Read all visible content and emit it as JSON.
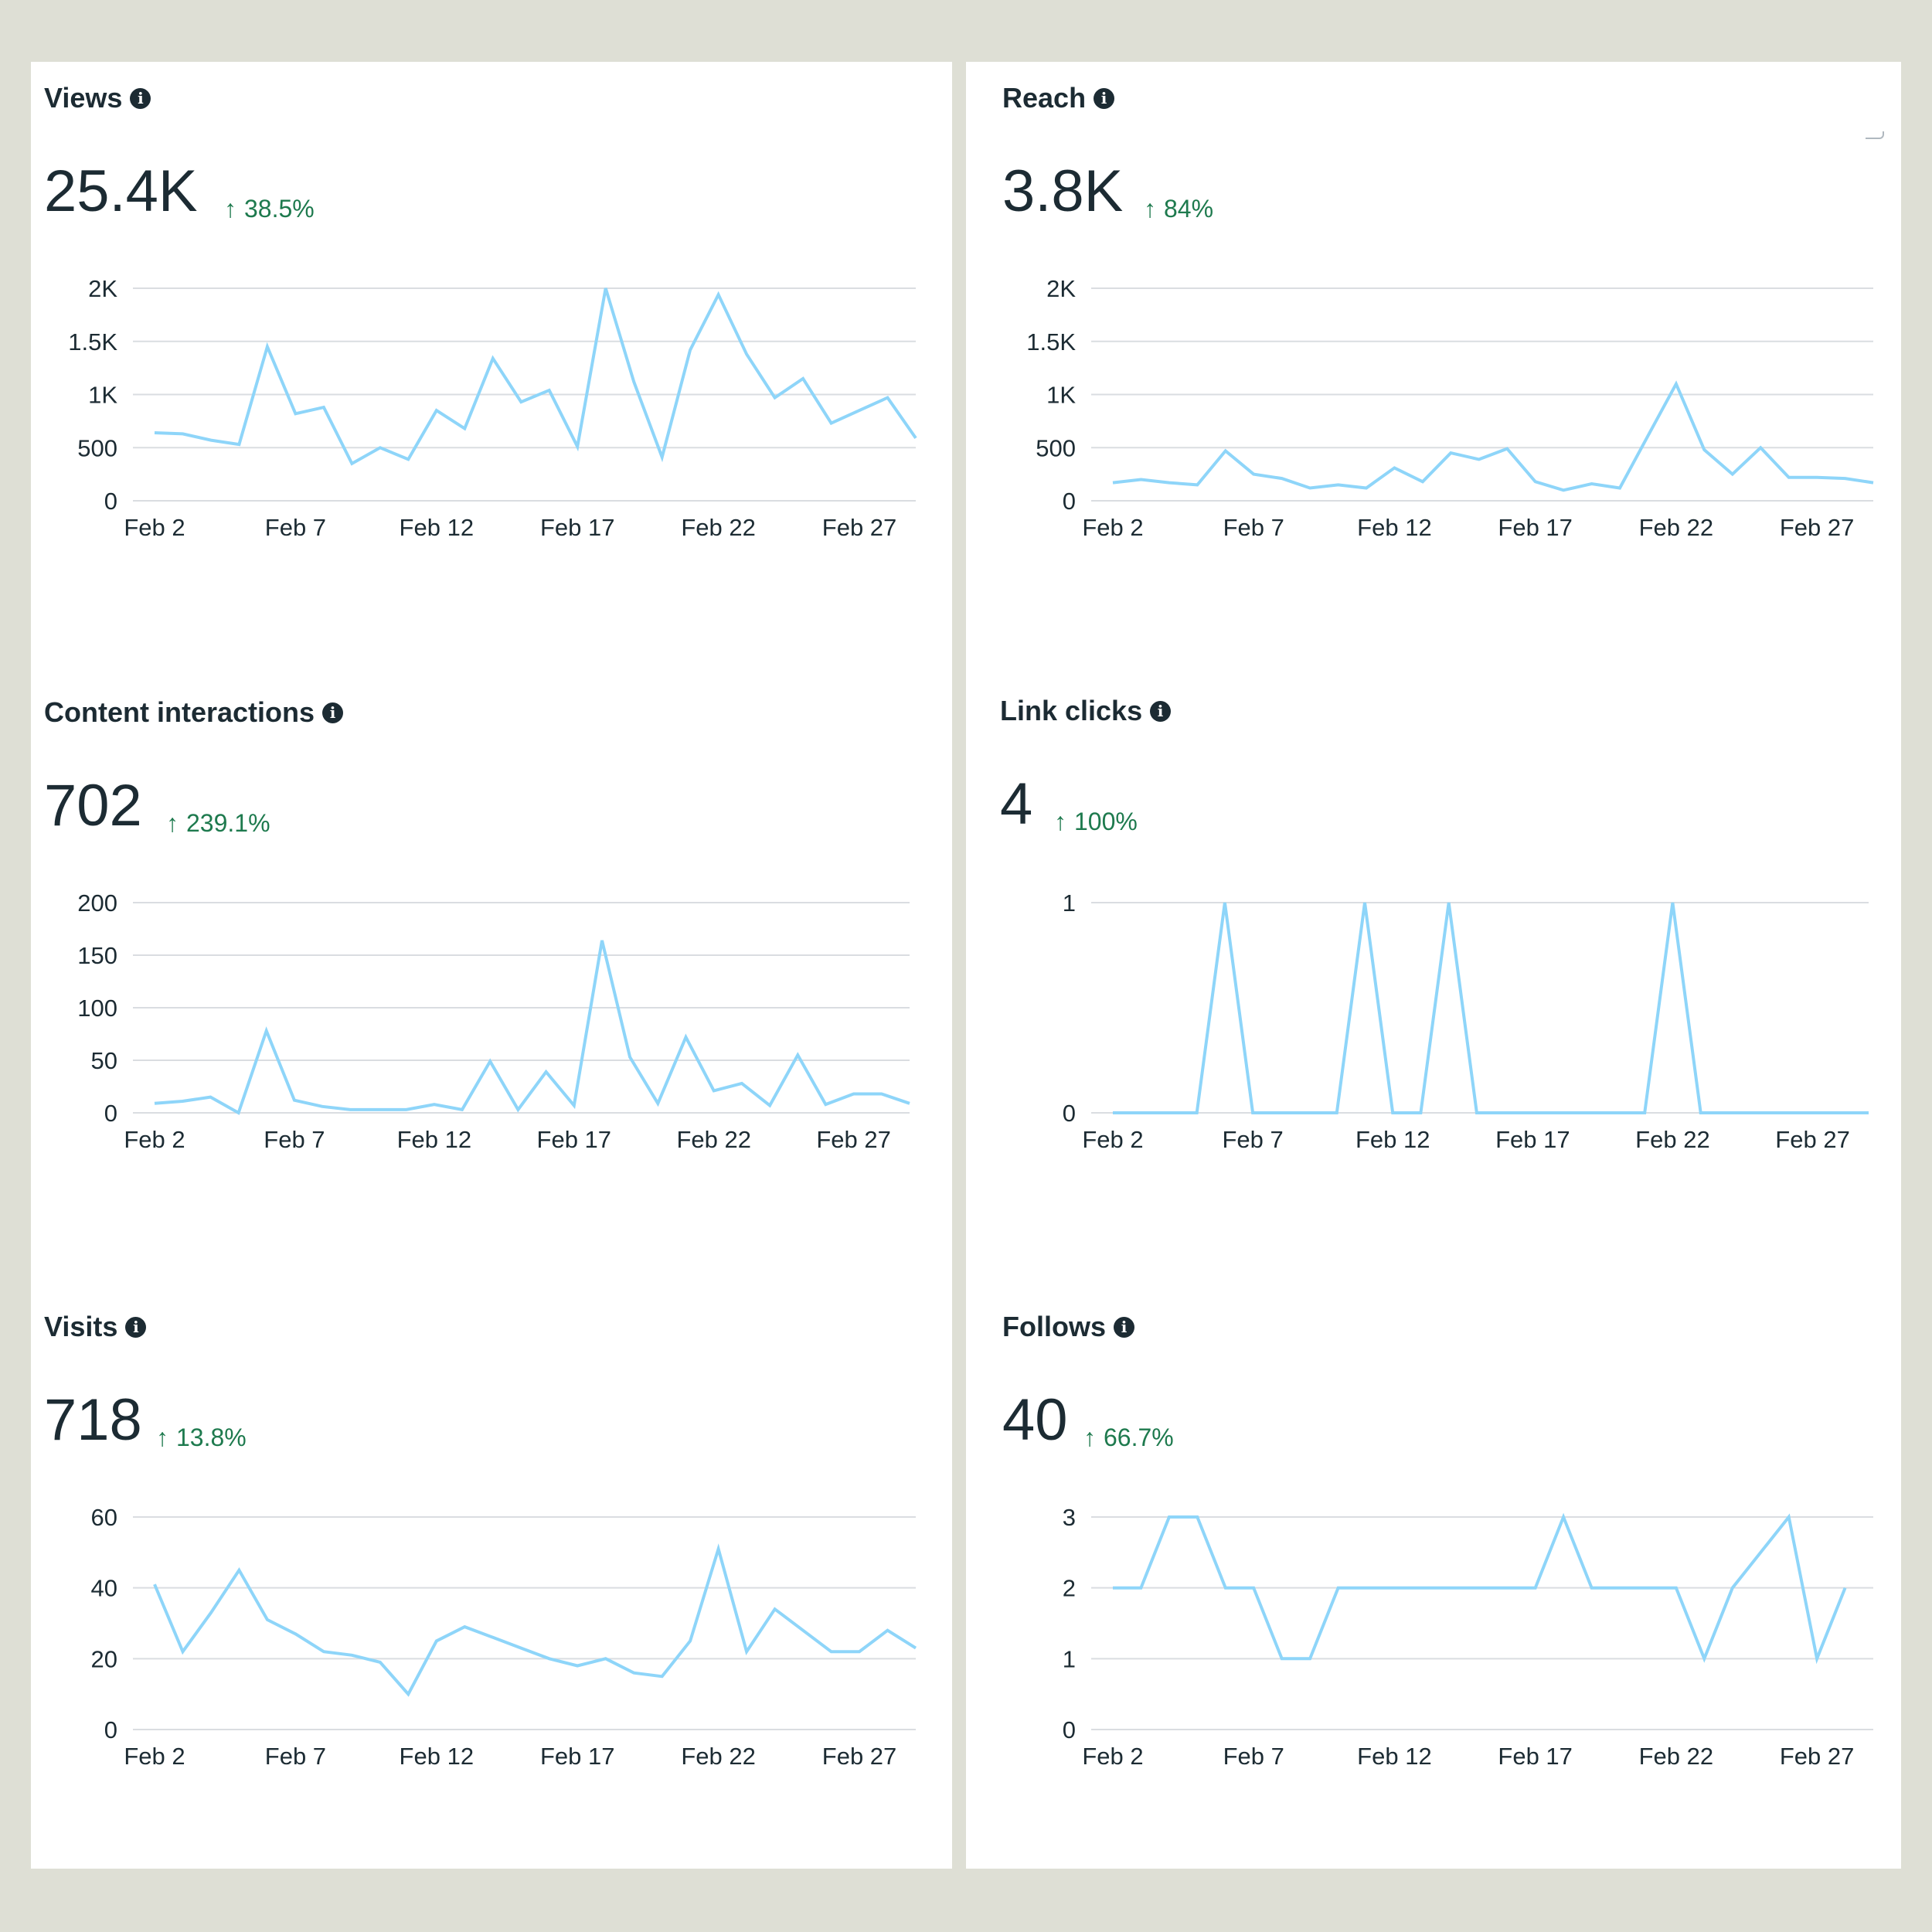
{
  "colors": {
    "background": "#dedfd5",
    "panel": "#ffffff",
    "line": "#8ed5f9",
    "grid": "#dadde1",
    "text": "#1c2b33",
    "positive_change": "#1e7a4e"
  },
  "icons": {
    "info": "info-icon",
    "change": "arrow-up-icon"
  },
  "cards": [
    {
      "title": "Views",
      "value": "25.4K",
      "change": "38.5%",
      "arrow": "↑"
    },
    {
      "title": "Reach",
      "value": "3.8K",
      "change": "84%",
      "arrow": "↑"
    },
    {
      "title": "Content interactions",
      "value": "702",
      "change": "239.1%",
      "arrow": "↑"
    },
    {
      "title": "Link clicks",
      "value": "4",
      "change": "100%",
      "arrow": "↑"
    },
    {
      "title": "Visits",
      "value": "718",
      "change": "13.8%",
      "arrow": "↑"
    },
    {
      "title": "Follows",
      "value": "40",
      "change": "66.7%",
      "arrow": "↑"
    }
  ],
  "chart_data": [
    {
      "type": "line",
      "title": "Views",
      "x_tick_labels": [
        "Feb 2",
        "Feb 7",
        "Feb 12",
        "Feb 17",
        "Feb 22",
        "Feb 27"
      ],
      "y_tick_labels": [
        "0",
        "500",
        "1K",
        "1.5K",
        "2K"
      ],
      "y_ticks": [
        0,
        500,
        1000,
        1500,
        2000
      ],
      "ylim": [
        0,
        2000
      ],
      "grid": true,
      "x": [
        2,
        3,
        4,
        5,
        6,
        7,
        8,
        9,
        10,
        11,
        12,
        13,
        14,
        15,
        16,
        17,
        18,
        19,
        20,
        21,
        22,
        23,
        24,
        25,
        26,
        27,
        28,
        29
      ],
      "series": [
        {
          "values": [
            640,
            630,
            570,
            530,
            1450,
            820,
            880,
            350,
            500,
            390,
            850,
            680,
            1340,
            930,
            1040,
            510,
            2000,
            1120,
            410,
            1420,
            1940,
            1380,
            970,
            1150,
            730,
            850,
            970,
            590
          ]
        }
      ]
    },
    {
      "type": "line",
      "title": "Reach",
      "x_tick_labels": [
        "Feb 2",
        "Feb 7",
        "Feb 12",
        "Feb 17",
        "Feb 22",
        "Feb 27"
      ],
      "y_tick_labels": [
        "0",
        "500",
        "1K",
        "1.5K",
        "2K"
      ],
      "y_ticks": [
        0,
        500,
        1000,
        1500,
        2000
      ],
      "ylim": [
        0,
        2000
      ],
      "grid": true,
      "x": [
        2,
        3,
        4,
        5,
        6,
        7,
        8,
        9,
        10,
        11,
        12,
        13,
        14,
        15,
        16,
        17,
        18,
        19,
        20,
        21,
        22,
        23,
        24,
        25,
        26,
        27,
        28,
        29
      ],
      "series": [
        {
          "values": [
            170,
            200,
            170,
            150,
            470,
            250,
            210,
            120,
            150,
            120,
            310,
            180,
            450,
            390,
            490,
            180,
            100,
            160,
            120,
            610,
            1100,
            480,
            250,
            500,
            220,
            220,
            210,
            170
          ]
        }
      ]
    },
    {
      "type": "line",
      "title": "Content interactions",
      "x_tick_labels": [
        "Feb 2",
        "Feb 7",
        "Feb 12",
        "Feb 17",
        "Feb 22",
        "Feb 27"
      ],
      "y_tick_labels": [
        "0",
        "50",
        "100",
        "150",
        "200"
      ],
      "y_ticks": [
        0,
        50,
        100,
        150,
        200
      ],
      "ylim": [
        0,
        200
      ],
      "grid": true,
      "x": [
        2,
        3,
        4,
        5,
        6,
        7,
        8,
        9,
        10,
        11,
        12,
        13,
        14,
        15,
        16,
        17,
        18,
        19,
        20,
        21,
        22,
        23,
        24,
        25,
        26,
        27,
        28,
        29
      ],
      "series": [
        {
          "values": [
            9,
            11,
            15,
            0,
            78,
            12,
            6,
            3,
            3,
            3,
            8,
            3,
            49,
            3,
            39,
            7,
            164,
            53,
            9,
            72,
            21,
            28,
            7,
            55,
            8,
            18,
            18,
            9
          ]
        }
      ]
    },
    {
      "type": "line",
      "title": "Link clicks",
      "x_tick_labels": [
        "Feb 2",
        "Feb 7",
        "Feb 12",
        "Feb 17",
        "Feb 22",
        "Feb 27"
      ],
      "y_tick_labels": [
        "0",
        "1"
      ],
      "y_ticks": [
        0,
        1
      ],
      "ylim": [
        0,
        1
      ],
      "grid": true,
      "x": [
        2,
        3,
        4,
        5,
        6,
        7,
        8,
        9,
        10,
        11,
        12,
        13,
        14,
        15,
        16,
        17,
        18,
        19,
        20,
        21,
        22,
        23,
        24,
        25,
        26,
        27,
        28,
        29
      ],
      "series": [
        {
          "values": [
            0,
            0,
            0,
            0,
            1,
            0,
            0,
            0,
            0,
            1,
            0,
            0,
            1,
            0,
            0,
            0,
            0,
            0,
            0,
            0,
            1,
            0,
            0,
            0,
            0,
            0,
            0,
            0
          ]
        }
      ]
    },
    {
      "type": "line",
      "title": "Visits",
      "x_tick_labels": [
        "Feb 2",
        "Feb 7",
        "Feb 12",
        "Feb 17",
        "Feb 22",
        "Feb 27"
      ],
      "y_tick_labels": [
        "0",
        "20",
        "40",
        "60"
      ],
      "y_ticks": [
        0,
        20,
        40,
        60
      ],
      "ylim": [
        0,
        60
      ],
      "grid": true,
      "x": [
        2,
        3,
        4,
        5,
        6,
        7,
        8,
        9,
        10,
        11,
        12,
        13,
        14,
        15,
        16,
        17,
        18,
        19,
        20,
        21,
        22,
        23,
        24,
        25,
        26,
        27,
        28,
        29
      ],
      "series": [
        {
          "values": [
            41,
            22,
            33,
            45,
            31,
            27,
            22,
            21,
            19,
            10,
            25,
            29,
            26,
            23,
            20,
            18,
            20,
            16,
            15,
            25,
            51,
            22,
            34,
            28,
            22,
            22,
            28,
            23
          ]
        }
      ]
    },
    {
      "type": "line",
      "title": "Follows",
      "x_tick_labels": [
        "Feb 2",
        "Feb 7",
        "Feb 12",
        "Feb 17",
        "Feb 22",
        "Feb 27"
      ],
      "y_tick_labels": [
        "0",
        "1",
        "2",
        "3"
      ],
      "y_ticks": [
        0,
        1,
        2,
        3
      ],
      "ylim": [
        0,
        3
      ],
      "grid": true,
      "x": [
        2,
        3,
        4,
        5,
        6,
        7,
        8,
        9,
        10,
        11,
        12,
        13,
        14,
        15,
        16,
        17,
        18,
        19,
        20,
        21,
        22,
        23,
        24,
        25,
        26,
        27,
        28,
        29
      ],
      "series": [
        {
          "values": [
            2,
            2,
            3,
            3,
            2,
            2,
            1,
            1,
            2,
            2,
            2,
            2,
            2,
            3,
            2,
            2,
            1,
            2,
            3,
            1,
            2
          ],
          "x": [
            2,
            3,
            4,
            5,
            6,
            7,
            8,
            9,
            10,
            12,
            14,
            16,
            17,
            18,
            19,
            22,
            23,
            24,
            26,
            27,
            28
          ]
        }
      ]
    }
  ]
}
